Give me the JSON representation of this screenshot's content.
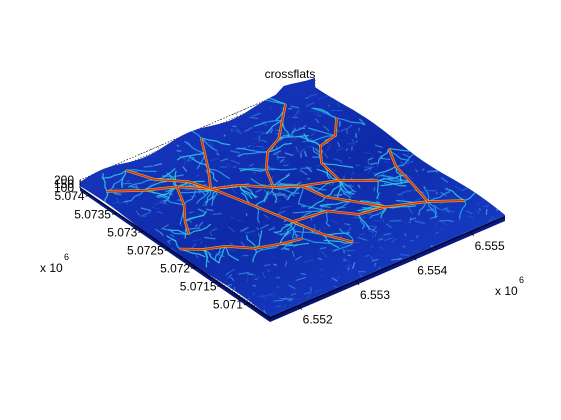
{
  "chart_data": {
    "type": "surface",
    "title": "crossflats",
    "colormap": "jet",
    "colors": {
      "low": "#0a1ea8",
      "mid": "#1e5ad8",
      "high": "#e03020"
    },
    "x_axis": {
      "ticks": [
        "6.552",
        "6.553",
        "6.554",
        "6.555"
      ],
      "multiplier": "x 10",
      "exponent": "6",
      "range": [
        6.5515,
        6.5556
      ]
    },
    "y_axis": {
      "ticks": [
        "5.071",
        "5.0715",
        "5.072",
        "5.0725",
        "5.073",
        "5.0735",
        "5.074"
      ],
      "multiplier": "x 10",
      "exponent": "6",
      "range": [
        5.0706,
        5.0742
      ]
    },
    "z_axis": {
      "ticks": [
        "100",
        "150",
        "200"
      ],
      "range": [
        100,
        200
      ]
    },
    "grid": true
  }
}
